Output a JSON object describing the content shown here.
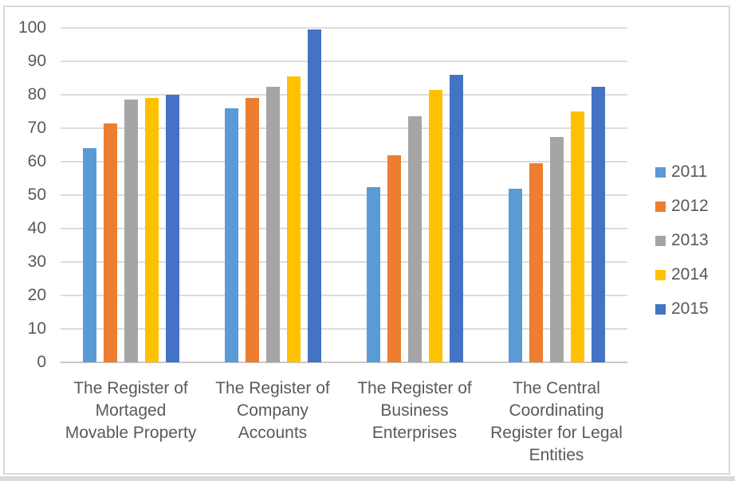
{
  "chart_data": {
    "type": "bar",
    "title": "",
    "categories": [
      "The Register of Mortaged Movable Property",
      "The Register of Company Accounts",
      "The Register of Business Enterprises",
      "The Central Coordinating Register for Legal Entities"
    ],
    "series": [
      {
        "name": "2011",
        "color": "#5B9BD5",
        "values": [
          64,
          76,
          52.5,
          52
        ]
      },
      {
        "name": "2012",
        "color": "#ED7D31",
        "values": [
          71.5,
          79,
          62,
          59.5
        ]
      },
      {
        "name": "2013",
        "color": "#A5A5A5",
        "values": [
          78.5,
          82.5,
          73.5,
          67.5
        ]
      },
      {
        "name": "2014",
        "color": "#FFC000",
        "values": [
          79,
          85.5,
          81.5,
          75
        ]
      },
      {
        "name": "2015",
        "color": "#4472C4",
        "values": [
          80,
          99.5,
          86,
          82.5
        ]
      }
    ],
    "xlabel": "",
    "ylabel": "",
    "ylim": [
      0,
      100
    ],
    "yticks": [
      0,
      10,
      20,
      30,
      40,
      50,
      60,
      70,
      80,
      90,
      100
    ],
    "grid": "horizontal",
    "legend_position": "right",
    "colors": {
      "gridline": "#DCDCDC",
      "axis_line": "#C8C8C8",
      "axis_text": "#595959",
      "frame_border": "#D9D9D9",
      "background": "#FFFFFF"
    }
  }
}
